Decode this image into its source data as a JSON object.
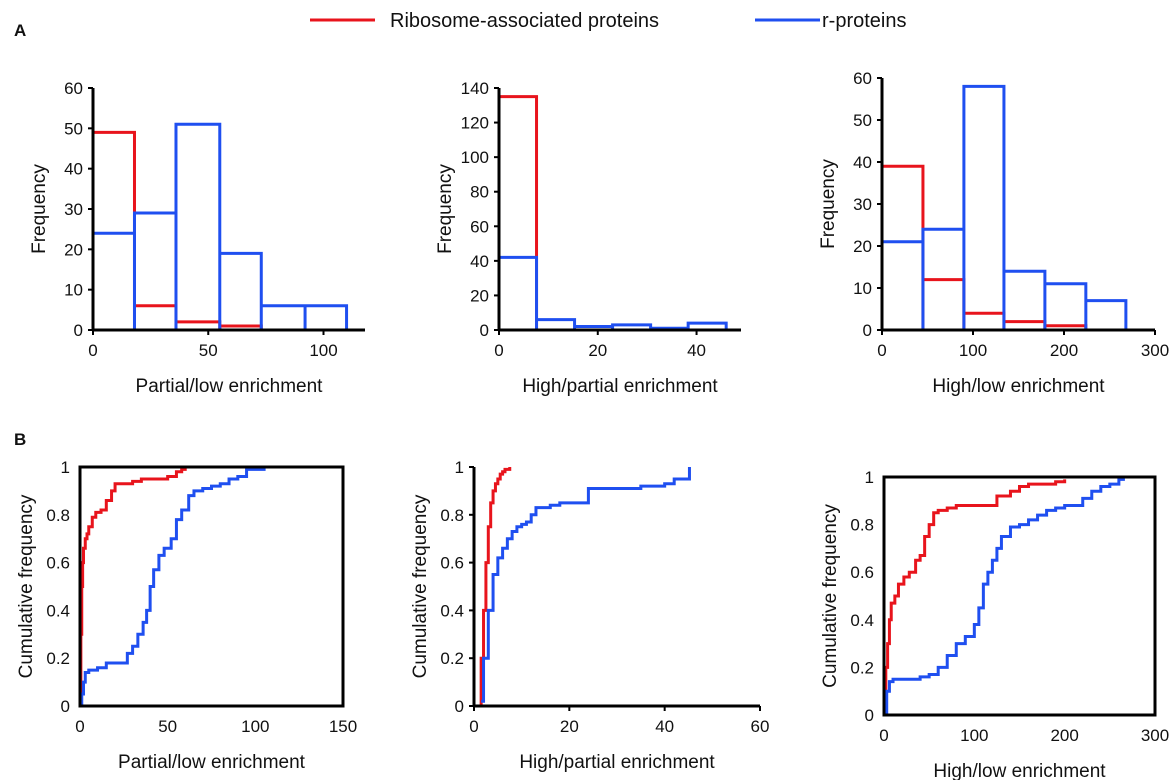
{
  "panel_labels": {
    "a": "A",
    "b": "B"
  },
  "legend": [
    {
      "label": "Ribosome-associated proteins",
      "color": "#e8141c"
    },
    {
      "label": "r-proteins",
      "color": "#1f4ff0"
    }
  ],
  "chart_data": [
    {
      "id": "a1",
      "type": "bar",
      "subtype": "histogram-step",
      "xlabel": "Partial/low enrichment",
      "ylabel": "Frequency",
      "xlim": [
        0,
        118
      ],
      "ylim": [
        0,
        60
      ],
      "xticks": [
        0,
        50,
        100
      ],
      "yticks": [
        0,
        10,
        20,
        30,
        40,
        50,
        60
      ],
      "series": [
        {
          "name": "Ribosome-associated proteins",
          "color": "#e8141c",
          "bins": [
            0,
            18,
            36,
            55,
            73,
            92
          ],
          "values": [
            49,
            6,
            2,
            1,
            0
          ]
        },
        {
          "name": "r-proteins",
          "color": "#1f4ff0",
          "bins": [
            0,
            18,
            36,
            55,
            73,
            92,
            110
          ],
          "values": [
            24,
            29,
            51,
            19,
            6,
            6
          ]
        }
      ]
    },
    {
      "id": "a2",
      "type": "bar",
      "subtype": "histogram-step",
      "xlabel": "High/partial enrichment",
      "ylabel": "Frequency",
      "xlim": [
        0,
        49
      ],
      "ylim": [
        0,
        140
      ],
      "xticks": [
        0,
        20,
        40
      ],
      "yticks": [
        0,
        20,
        40,
        60,
        80,
        100,
        120,
        140
      ],
      "series": [
        {
          "name": "Ribosome-associated proteins",
          "color": "#e8141c",
          "bins": [
            0,
            7.6,
            15.3,
            23,
            30.7,
            38.3,
            46
          ],
          "values": [
            135,
            0,
            0,
            0,
            0,
            0
          ]
        },
        {
          "name": "r-proteins",
          "color": "#1f4ff0",
          "bins": [
            0,
            7.6,
            15.3,
            23,
            30.7,
            38.3,
            46
          ],
          "values": [
            42,
            6,
            2,
            3,
            1,
            4
          ]
        }
      ]
    },
    {
      "id": "a3",
      "type": "bar",
      "subtype": "histogram-step",
      "xlabel": "High/low enrichment",
      "ylabel": "Frequency",
      "xlim": [
        0,
        300
      ],
      "ylim": [
        0,
        60
      ],
      "xticks": [
        0,
        100,
        200,
        300
      ],
      "yticks": [
        0,
        10,
        20,
        30,
        40,
        50,
        60
      ],
      "series": [
        {
          "name": "Ribosome-associated proteins",
          "color": "#e8141c",
          "bins": [
            0,
            45,
            90,
            134,
            179,
            224,
            268
          ],
          "values": [
            39,
            12,
            4,
            2,
            1,
            0
          ]
        },
        {
          "name": "r-proteins",
          "color": "#1f4ff0",
          "bins": [
            0,
            45,
            90,
            134,
            179,
            224,
            268
          ],
          "values": [
            21,
            24,
            58,
            14,
            11,
            7
          ]
        }
      ]
    },
    {
      "id": "b1",
      "type": "line",
      "subtype": "cumulative-step",
      "xlabel": "Partial/low enrichment",
      "ylabel": "Cumulative  frequency",
      "xlim": [
        0,
        150
      ],
      "ylim": [
        0,
        1
      ],
      "xticks": [
        0,
        50,
        100,
        150
      ],
      "yticks": [
        0,
        0.2,
        0.4,
        0.6,
        0.8,
        1
      ],
      "series": [
        {
          "name": "Ribosome-associated proteins",
          "color": "#e8141c",
          "x": [
            0,
            0.5,
            1,
            1.5,
            2,
            3,
            4,
            5,
            7,
            9,
            12,
            15,
            18,
            20,
            25,
            30,
            35,
            45,
            50,
            55,
            58,
            60
          ],
          "y": [
            0,
            0.3,
            0.5,
            0.6,
            0.66,
            0.7,
            0.72,
            0.75,
            0.79,
            0.81,
            0.82,
            0.86,
            0.9,
            0.93,
            0.93,
            0.94,
            0.95,
            0.95,
            0.96,
            0.98,
            0.99,
            1
          ]
        },
        {
          "name": "r-proteins",
          "color": "#1f4ff0",
          "x": [
            0,
            1,
            2,
            3,
            5,
            10,
            15,
            20,
            25,
            27,
            30,
            33,
            36,
            38,
            40,
            42,
            45,
            48,
            52,
            55,
            58,
            62,
            65,
            70,
            75,
            80,
            85,
            90,
            95,
            100,
            105,
            107
          ],
          "y": [
            0,
            0.05,
            0.1,
            0.14,
            0.15,
            0.16,
            0.18,
            0.18,
            0.18,
            0.22,
            0.25,
            0.3,
            0.35,
            0.4,
            0.5,
            0.57,
            0.63,
            0.66,
            0.7,
            0.78,
            0.82,
            0.88,
            0.9,
            0.91,
            0.92,
            0.93,
            0.95,
            0.96,
            0.99,
            0.99,
            1,
            1
          ]
        }
      ]
    },
    {
      "id": "b2",
      "type": "line",
      "subtype": "cumulative-step",
      "xlabel": "High/partial enrichment",
      "ylabel": "Cumulative frequency",
      "xlim": [
        0,
        60
      ],
      "ylim": [
        0,
        1
      ],
      "xticks": [
        0,
        20,
        40,
        60
      ],
      "yticks": [
        0,
        0.2,
        0.4,
        0.6,
        0.8,
        1
      ],
      "series": [
        {
          "name": "Ribosome-associated proteins",
          "color": "#e8141c",
          "x": [
            1,
            1.5,
            2,
            2.5,
            3,
            3.5,
            4,
            4.5,
            5,
            5.5,
            6,
            6.5,
            7,
            7.5
          ],
          "y": [
            0,
            0.2,
            0.4,
            0.6,
            0.75,
            0.85,
            0.9,
            0.93,
            0.95,
            0.97,
            0.98,
            0.99,
            0.99,
            1
          ]
        },
        {
          "name": "r-proteins",
          "color": "#1f4ff0",
          "x": [
            1.5,
            2,
            3,
            4,
            5,
            6,
            7,
            8,
            9,
            10,
            11,
            12,
            13,
            14,
            16,
            18,
            20,
            22,
            24,
            26,
            30,
            35,
            40,
            42,
            45,
            45.2
          ],
          "y": [
            0.02,
            0.2,
            0.4,
            0.55,
            0.62,
            0.66,
            0.7,
            0.73,
            0.75,
            0.76,
            0.77,
            0.8,
            0.83,
            0.83,
            0.84,
            0.85,
            0.85,
            0.85,
            0.91,
            0.91,
            0.91,
            0.92,
            0.93,
            0.95,
            0.95,
            1
          ]
        }
      ]
    },
    {
      "id": "b3",
      "type": "line",
      "subtype": "cumulative-step",
      "xlabel": "High/low enrichment",
      "ylabel": "Cumulative frequency",
      "xlim": [
        0,
        300
      ],
      "ylim": [
        0,
        1
      ],
      "xticks": [
        0,
        100,
        200,
        300
      ],
      "yticks": [
        0,
        0.2,
        0.4,
        0.6,
        0.8,
        1
      ],
      "series": [
        {
          "name": "Ribosome-associated proteins",
          "color": "#e8141c",
          "x": [
            0,
            2,
            4,
            6,
            8,
            12,
            16,
            22,
            28,
            35,
            40,
            45,
            50,
            55,
            60,
            70,
            80,
            95,
            110,
            125,
            140,
            150,
            160,
            175,
            190,
            200
          ],
          "y": [
            0,
            0.2,
            0.3,
            0.4,
            0.47,
            0.5,
            0.55,
            0.58,
            0.6,
            0.65,
            0.67,
            0.75,
            0.8,
            0.85,
            0.86,
            0.87,
            0.88,
            0.88,
            0.88,
            0.92,
            0.94,
            0.96,
            0.97,
            0.97,
            0.98,
            0.99
          ]
        },
        {
          "name": "r-proteins",
          "color": "#1f4ff0",
          "x": [
            0,
            3,
            6,
            10,
            20,
            30,
            40,
            50,
            60,
            70,
            80,
            90,
            100,
            105,
            110,
            115,
            120,
            125,
            130,
            140,
            150,
            160,
            170,
            180,
            190,
            200,
            210,
            220,
            230,
            240,
            250,
            260,
            265
          ],
          "y": [
            0,
            0.1,
            0.14,
            0.15,
            0.15,
            0.15,
            0.16,
            0.17,
            0.2,
            0.25,
            0.3,
            0.33,
            0.38,
            0.45,
            0.55,
            0.6,
            0.65,
            0.7,
            0.75,
            0.79,
            0.8,
            0.82,
            0.84,
            0.86,
            0.87,
            0.88,
            0.88,
            0.91,
            0.94,
            0.96,
            0.97,
            0.99,
            1
          ]
        }
      ]
    }
  ]
}
